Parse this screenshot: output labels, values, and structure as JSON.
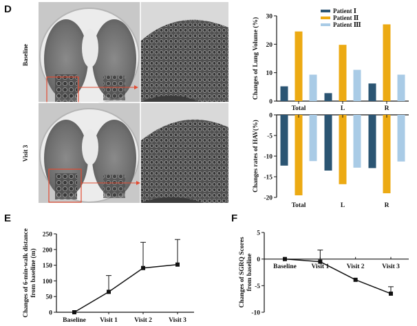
{
  "panel_labels": {
    "d": "D",
    "e": "E",
    "f": "F"
  },
  "ct": {
    "row1_label": "Baseline",
    "row2_label": "Visit 3"
  },
  "colors": {
    "patient1": "#2b5573",
    "patient2": "#ecaa13",
    "patient3": "#a9cbe6",
    "line": "#111111",
    "arrow": "#e24b32"
  },
  "chart_data": [
    {
      "id": "lung-volume",
      "type": "bar",
      "categories": [
        "Total",
        "L",
        "R"
      ],
      "series": [
        {
          "name": "Patient Ⅰ",
          "values": [
            5.2,
            2.8,
            6.2
          ]
        },
        {
          "name": "Patient Ⅱ",
          "values": [
            24.5,
            19.8,
            27.0
          ]
        },
        {
          "name": "Patient Ⅲ",
          "values": [
            9.3,
            11.0,
            9.3
          ]
        }
      ],
      "ylabel": "Changes of Lung Volume (%)",
      "ylim": [
        0,
        30
      ],
      "yticks": [
        "0",
        "10",
        "20",
        "30"
      ],
      "legend": "top-right"
    },
    {
      "id": "hav",
      "type": "bar",
      "categories": [
        "Total",
        "L",
        "R"
      ],
      "series": [
        {
          "name": "Patient Ⅰ",
          "values": [
            -12.3,
            -13.5,
            -12.9
          ]
        },
        {
          "name": "Patient Ⅱ",
          "values": [
            -19.5,
            -16.8,
            -19.0
          ]
        },
        {
          "name": "Patient Ⅲ",
          "values": [
            -11.2,
            -12.8,
            -11.3
          ]
        }
      ],
      "ylabel": "Changes rates of HAV(%)",
      "ylim": [
        -20,
        0
      ],
      "yticks": [
        "0",
        "-5",
        "-10",
        "-15",
        "-20"
      ]
    },
    {
      "id": "walk-distance",
      "type": "line",
      "categories": [
        "Baseline",
        "Visit 1",
        "Visit 2",
        "Visit 3"
      ],
      "values": [
        0,
        65,
        141,
        152
      ],
      "error_upper": [
        0,
        117,
        223,
        232
      ],
      "ylabel": "Changes of 6-min-walk distance from baseline (m)",
      "ylim": [
        0,
        250
      ],
      "yticks": [
        "0",
        "50",
        "100",
        "150",
        "200",
        "250"
      ]
    },
    {
      "id": "sgrq",
      "type": "line",
      "categories": [
        "Baseline",
        "Visit 1",
        "Visit 2",
        "Visit 3"
      ],
      "values": [
        0,
        -0.5,
        -3.9,
        -6.5
      ],
      "error_upper": [
        0,
        1.7,
        -3.9,
        -5.2
      ],
      "ylabel": "Changes of SGRQ Scores from baseline",
      "ylim": [
        -10,
        5
      ],
      "yticks": [
        "5",
        "0",
        "-5",
        "-10"
      ]
    }
  ]
}
